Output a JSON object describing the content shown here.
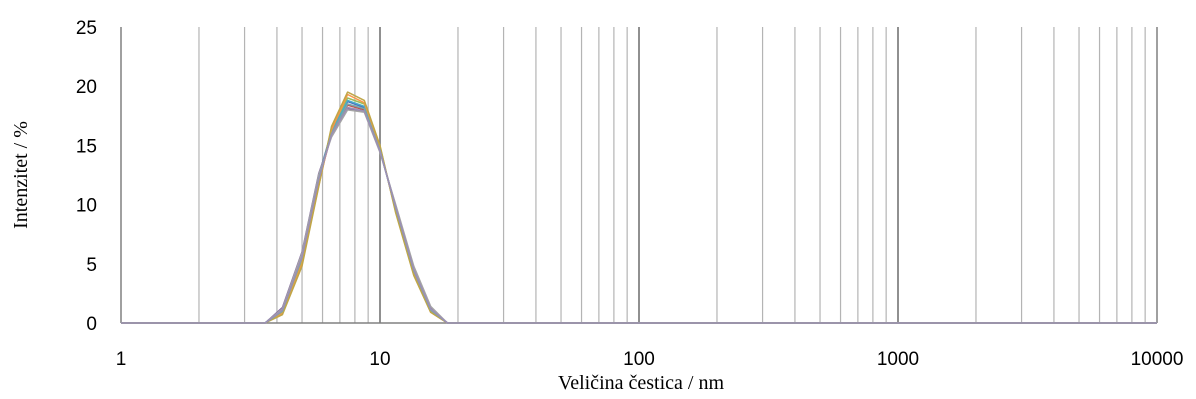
{
  "chart_data": {
    "type": "line",
    "xscale": "log",
    "xlim": [
      1,
      10000
    ],
    "ylim": [
      0,
      25
    ],
    "xlabel": "Veličina čestica / nm",
    "ylabel": "Intenzitet / %",
    "xticks": [
      "1",
      "10",
      "100",
      "1000",
      "10000"
    ],
    "yticks": [
      "0",
      "5",
      "10",
      "15",
      "20",
      "25"
    ],
    "grid": "vertical-minor",
    "legend": "none",
    "x": [
      1,
      3.6,
      4.2,
      5,
      5.8,
      6.5,
      7.5,
      8.7,
      10,
      11.5,
      13.5,
      15.7,
      18.2,
      10000
    ],
    "series": [
      {
        "color": "#4472c4",
        "values": [
          0,
          0,
          1.2,
          5.8,
          12.4,
          16.2,
          18.7,
          18.2,
          14.6,
          9.6,
          4.4,
          1.1,
          0,
          0
        ]
      },
      {
        "color": "#c0504d",
        "values": [
          0,
          0,
          1.0,
          5.4,
          12.0,
          15.9,
          18.4,
          18.0,
          14.6,
          9.8,
          4.6,
          1.2,
          0,
          0
        ]
      },
      {
        "color": "#9bbb59",
        "values": [
          0,
          0,
          0.9,
          5.2,
          11.8,
          16.4,
          19.0,
          18.5,
          14.8,
          9.5,
          4.2,
          1.0,
          0,
          0
        ]
      },
      {
        "color": "#8064a2",
        "values": [
          0,
          0,
          1.3,
          6.0,
          12.6,
          15.8,
          18.1,
          17.9,
          14.5,
          9.9,
          4.7,
          1.3,
          0,
          0
        ]
      },
      {
        "color": "#4bacc6",
        "values": [
          0,
          0,
          1.1,
          5.7,
          12.3,
          16.1,
          18.8,
          18.3,
          14.7,
          9.7,
          4.5,
          1.1,
          0,
          0
        ]
      },
      {
        "color": "#f79646",
        "values": [
          0,
          0,
          0.8,
          5.0,
          11.6,
          16.3,
          19.3,
          18.6,
          14.9,
          9.4,
          4.1,
          0.9,
          0,
          0
        ]
      },
      {
        "color": "#a5a5a5",
        "values": [
          0,
          0,
          1.2,
          5.9,
          12.5,
          15.7,
          18.0,
          17.8,
          14.4,
          10.0,
          4.8,
          1.4,
          0,
          0
        ]
      },
      {
        "color": "#bfa648",
        "values": [
          0,
          0,
          0.7,
          4.8,
          11.5,
          16.6,
          19.5,
          18.8,
          15.0,
          9.3,
          4.0,
          0.9,
          0,
          0
        ]
      },
      {
        "color": "#7aa6a8",
        "values": [
          0,
          0,
          1.0,
          5.5,
          12.2,
          16.0,
          18.5,
          18.1,
          14.6,
          9.7,
          4.4,
          1.1,
          0,
          0
        ]
      },
      {
        "color": "#9c8fb5",
        "values": [
          0,
          0,
          1.1,
          5.6,
          12.1,
          15.9,
          18.2,
          17.9,
          14.5,
          9.8,
          4.5,
          1.2,
          0,
          0
        ]
      }
    ]
  }
}
